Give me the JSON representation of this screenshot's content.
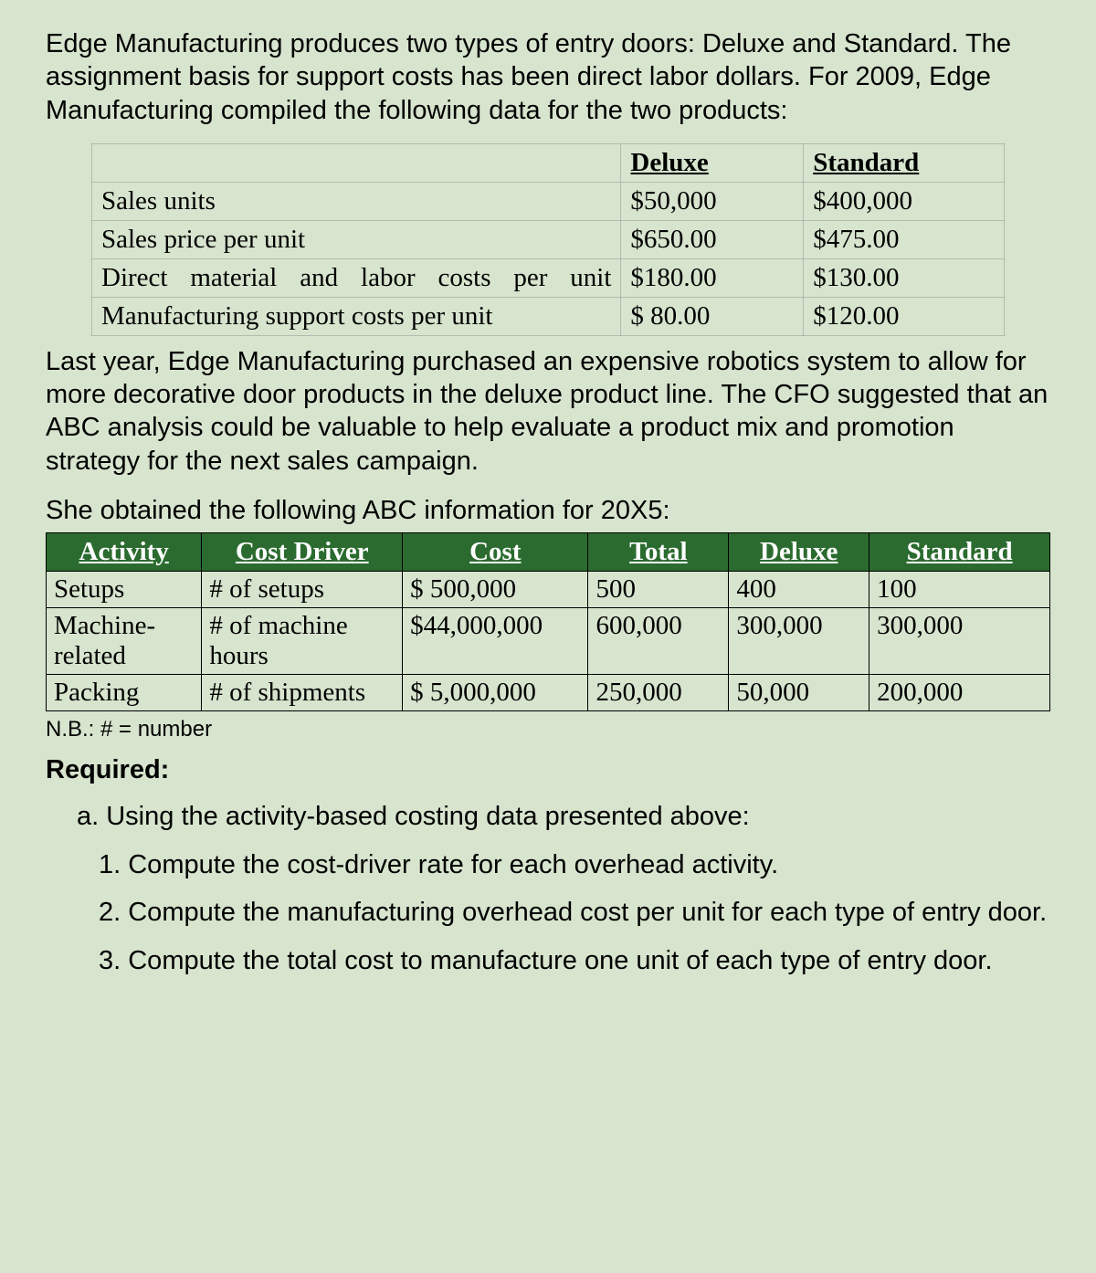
{
  "intro_para": "Edge Manufacturing produces two types of entry doors: Deluxe and Standard. The assignment basis for support costs has been direct labor dollars. For 2009, Edge Manufacturing compiled the following data for the two products:",
  "table1": {
    "col_headers": [
      "Deluxe",
      "Standard"
    ],
    "rows": [
      {
        "label": "Sales units",
        "deluxe": "$50,000",
        "standard": "$400,000",
        "justify": false
      },
      {
        "label": "Sales price per unit",
        "deluxe": "$650.00",
        "standard": "$475.00",
        "justify": false
      },
      {
        "label": "Direct material and labor costs per unit",
        "deluxe": "$180.00",
        "standard": "$130.00",
        "justify": true
      },
      {
        "label": "Manufacturing support costs per unit",
        "deluxe": "$ 80.00",
        "standard": "$120.00",
        "justify": false
      }
    ],
    "col_widths": [
      "58%",
      "20%",
      "22%"
    ]
  },
  "mid_para": "Last year, Edge Manufacturing purchased an expensive robotics system to allow for more decorative door products in the deluxe product line. The CFO suggested that an ABC analysis could be valuable to help evaluate a product mix and promotion strategy for the next sales campaign.",
  "abc_intro": "She obtained the following ABC information for 20X5:",
  "table2": {
    "headers": [
      "Activity",
      "Cost Driver",
      "Cost",
      "Total",
      "Deluxe",
      "Standard"
    ],
    "rows": [
      [
        "Setups",
        "# of setups",
        "$ 500,000",
        "500",
        "400",
        "100"
      ],
      [
        "Machine-related",
        "# of machine hours",
        "$44,000,000",
        "600,000",
        "300,000",
        "300,000"
      ],
      [
        "Packing",
        "# of shipments",
        "$ 5,000,000",
        "250,000",
        "50,000",
        "200,000"
      ]
    ],
    "col_widths": [
      "15.5%",
      "20%",
      "18.5%",
      "14%",
      "14%",
      "18%"
    ],
    "header_bg": "#2b6b2f",
    "header_fg": "#ffffff"
  },
  "note": "N.B.: # = number",
  "required_label": "Required:",
  "req_a": "a. Using the activity-based costing data presented above:",
  "req_items": [
    "1. Compute the cost-driver rate for each overhead activity.",
    "2. Compute the manufacturing overhead cost per unit for each type of entry door.",
    "3. Compute the total cost to manufacture one unit of each type of entry door."
  ]
}
